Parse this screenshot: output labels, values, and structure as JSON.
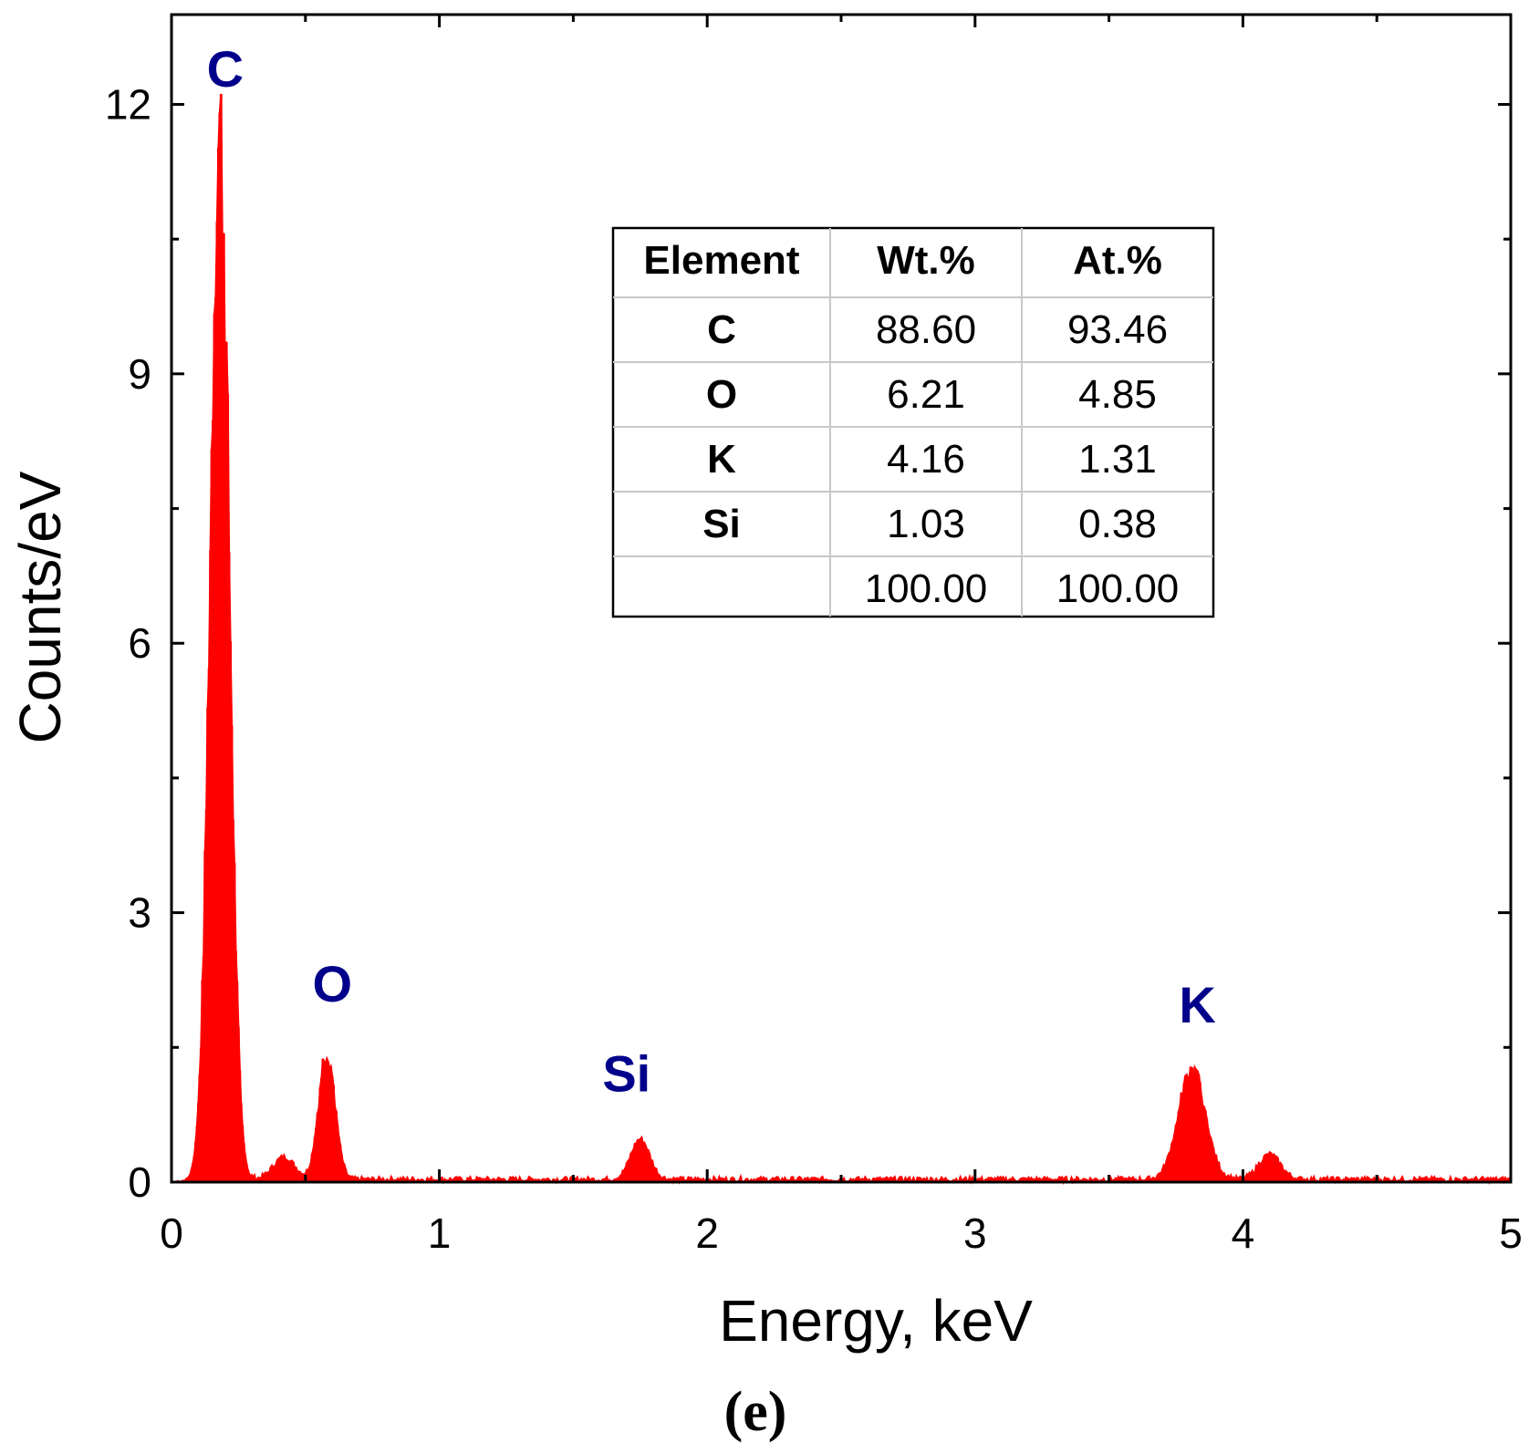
{
  "chart_data": {
    "type": "bar",
    "title": "",
    "xlabel": "Energy, keV",
    "ylabel": "Counts/eV",
    "xlim": [
      0,
      5
    ],
    "ylim": [
      0,
      13
    ],
    "xticks": [
      0,
      1,
      2,
      3,
      4,
      5
    ],
    "yticks": [
      0,
      3,
      6,
      9,
      12
    ],
    "panel_label": "(e)",
    "color": "#ff0000",
    "label_color": "#00008b",
    "peaks": [
      {
        "element": "C",
        "energy": 0.18,
        "height": 11.8
      },
      {
        "element": "O",
        "energy": 0.58,
        "height": 1.45
      },
      {
        "element": "Si",
        "energy": 1.75,
        "height": 0.45
      },
      {
        "element": "K",
        "energy": 3.81,
        "height": 1.22
      }
    ],
    "minor_features": [
      {
        "energy": 0.42,
        "height": 0.25
      },
      {
        "energy": 4.1,
        "height": 0.28
      }
    ],
    "table": {
      "headers": [
        "Element",
        "Wt.%",
        "At.%"
      ],
      "rows": [
        [
          "C",
          "88.60",
          "93.46"
        ],
        [
          "O",
          "6.21",
          "4.85"
        ],
        [
          "K",
          "4.16",
          "1.31"
        ],
        [
          "Si",
          "1.03",
          "0.38"
        ],
        [
          "",
          "100.00",
          "100.00"
        ]
      ]
    }
  }
}
